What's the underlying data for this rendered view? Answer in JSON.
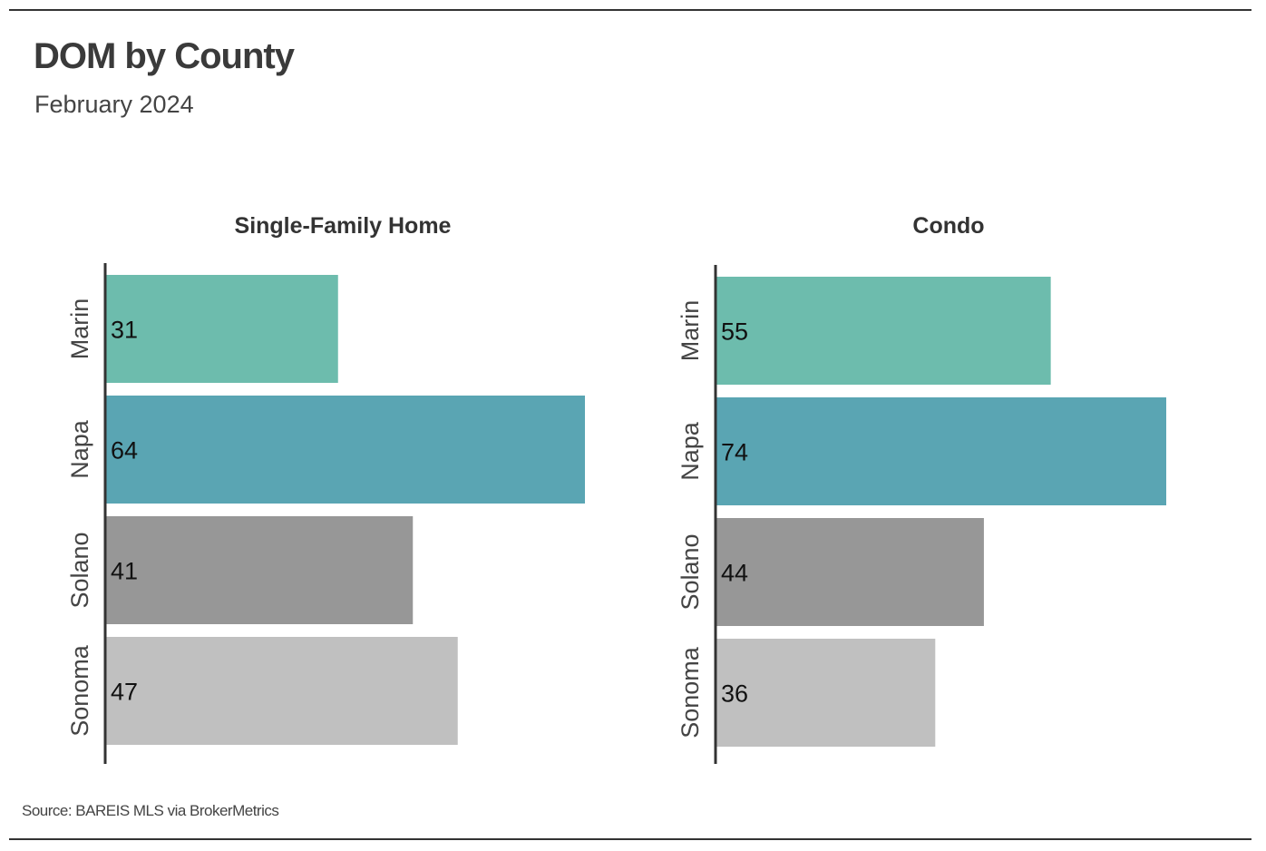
{
  "title": "DOM by County",
  "subtitle": "February 2024",
  "source": "Source:  BAREIS MLS via BrokerMetrics",
  "colors": {
    "Marin": "#6dbcad",
    "Napa": "#5aa5b3",
    "Solano": "#979797",
    "Sonoma": "#c0c0c0",
    "axis": "#333333"
  },
  "chart_data": [
    {
      "type": "bar",
      "orientation": "horizontal",
      "title": "Single-Family Home",
      "categories": [
        "Marin",
        "Napa",
        "Solano",
        "Sonoma"
      ],
      "values": [
        31,
        64,
        41,
        47
      ],
      "xlim": [
        0,
        64
      ],
      "grid": false
    },
    {
      "type": "bar",
      "orientation": "horizontal",
      "title": "Condo",
      "categories": [
        "Marin",
        "Napa",
        "Solano",
        "Sonoma"
      ],
      "values": [
        55,
        74,
        44,
        36
      ],
      "xlim": [
        0,
        74
      ],
      "grid": false
    }
  ]
}
